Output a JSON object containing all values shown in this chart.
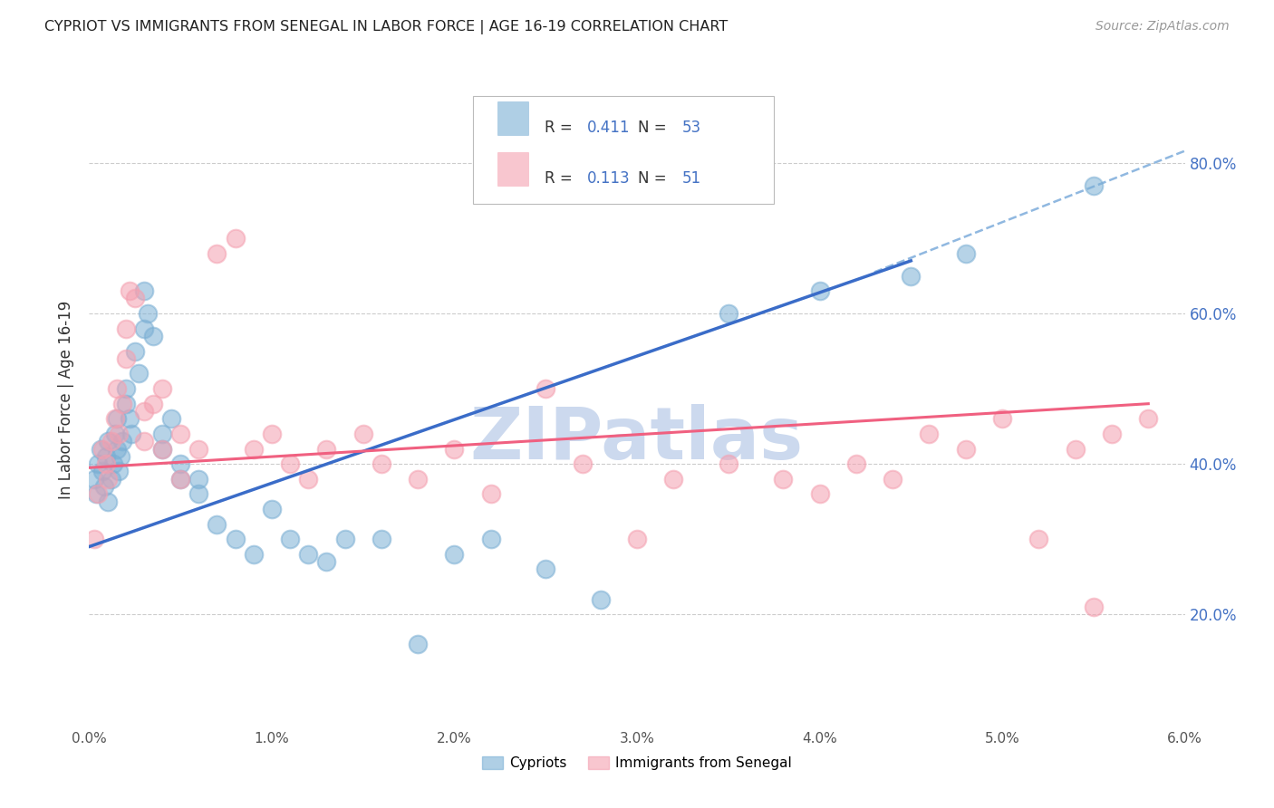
{
  "title": "CYPRIOT VS IMMIGRANTS FROM SENEGAL IN LABOR FORCE | AGE 16-19 CORRELATION CHART",
  "source_text": "Source: ZipAtlas.com",
  "ylabel": "In Labor Force | Age 16-19",
  "xlim": [
    0.0,
    0.06
  ],
  "ylim": [
    0.05,
    0.92
  ],
  "yticks": [
    0.2,
    0.4,
    0.6,
    0.8
  ],
  "ytick_labels": [
    "20.0%",
    "40.0%",
    "60.0%",
    "80.0%"
  ],
  "xticks": [
    0.0,
    0.01,
    0.02,
    0.03,
    0.04,
    0.05,
    0.06
  ],
  "xtick_labels": [
    "0.0%",
    "1.0%",
    "2.0%",
    "3.0%",
    "4.0%",
    "5.0%",
    "6.0%"
  ],
  "grid_color": "#cccccc",
  "background_color": "#ffffff",
  "watermark_text": "ZIPatlas",
  "watermark_color": "#ccd9ee",
  "cypriot_color": "#7bafd4",
  "senegal_color": "#f4a0b0",
  "cypriot_line_color": "#3a6cc8",
  "senegal_line_color": "#f06080",
  "dashed_line_color": "#90b8e0",
  "legend_text_color": "#4472c4",
  "cypriot_scatter_x": [
    0.0003,
    0.0004,
    0.0005,
    0.0006,
    0.0007,
    0.0008,
    0.0009,
    0.001,
    0.001,
    0.0012,
    0.0013,
    0.0014,
    0.0015,
    0.0015,
    0.0016,
    0.0017,
    0.0018,
    0.002,
    0.002,
    0.0022,
    0.0023,
    0.0025,
    0.0027,
    0.003,
    0.003,
    0.0032,
    0.0035,
    0.004,
    0.004,
    0.0045,
    0.005,
    0.005,
    0.006,
    0.006,
    0.007,
    0.008,
    0.009,
    0.01,
    0.011,
    0.012,
    0.013,
    0.014,
    0.016,
    0.018,
    0.02,
    0.022,
    0.025,
    0.028,
    0.035,
    0.04,
    0.045,
    0.048,
    0.055
  ],
  "cypriot_scatter_y": [
    0.38,
    0.36,
    0.4,
    0.42,
    0.39,
    0.37,
    0.41,
    0.43,
    0.35,
    0.38,
    0.4,
    0.44,
    0.46,
    0.42,
    0.39,
    0.41,
    0.43,
    0.5,
    0.48,
    0.46,
    0.44,
    0.55,
    0.52,
    0.63,
    0.58,
    0.6,
    0.57,
    0.42,
    0.44,
    0.46,
    0.4,
    0.38,
    0.36,
    0.38,
    0.32,
    0.3,
    0.28,
    0.34,
    0.3,
    0.28,
    0.27,
    0.3,
    0.3,
    0.16,
    0.28,
    0.3,
    0.26,
    0.22,
    0.6,
    0.63,
    0.65,
    0.68,
    0.77
  ],
  "senegal_scatter_x": [
    0.0003,
    0.0005,
    0.0007,
    0.0009,
    0.001,
    0.0012,
    0.0014,
    0.0015,
    0.0016,
    0.0018,
    0.002,
    0.002,
    0.0022,
    0.0025,
    0.003,
    0.003,
    0.0035,
    0.004,
    0.004,
    0.005,
    0.005,
    0.006,
    0.007,
    0.008,
    0.009,
    0.01,
    0.011,
    0.012,
    0.013,
    0.015,
    0.016,
    0.018,
    0.02,
    0.022,
    0.025,
    0.027,
    0.03,
    0.032,
    0.035,
    0.038,
    0.04,
    0.042,
    0.044,
    0.046,
    0.048,
    0.05,
    0.052,
    0.054,
    0.056,
    0.058,
    0.055
  ],
  "senegal_scatter_y": [
    0.3,
    0.36,
    0.42,
    0.4,
    0.38,
    0.43,
    0.46,
    0.5,
    0.44,
    0.48,
    0.54,
    0.58,
    0.63,
    0.62,
    0.43,
    0.47,
    0.48,
    0.5,
    0.42,
    0.38,
    0.44,
    0.42,
    0.68,
    0.7,
    0.42,
    0.44,
    0.4,
    0.38,
    0.42,
    0.44,
    0.4,
    0.38,
    0.42,
    0.36,
    0.5,
    0.4,
    0.3,
    0.38,
    0.4,
    0.38,
    0.36,
    0.4,
    0.38,
    0.44,
    0.42,
    0.46,
    0.3,
    0.42,
    0.44,
    0.46,
    0.21
  ],
  "cypriot_line_x": [
    0.0,
    0.045
  ],
  "cypriot_line_y": [
    0.29,
    0.67
  ],
  "senegal_line_x": [
    0.0,
    0.058
  ],
  "senegal_line_y": [
    0.395,
    0.48
  ],
  "dashed_line_x": [
    0.043,
    0.062
  ],
  "dashed_line_y": [
    0.655,
    0.835
  ]
}
